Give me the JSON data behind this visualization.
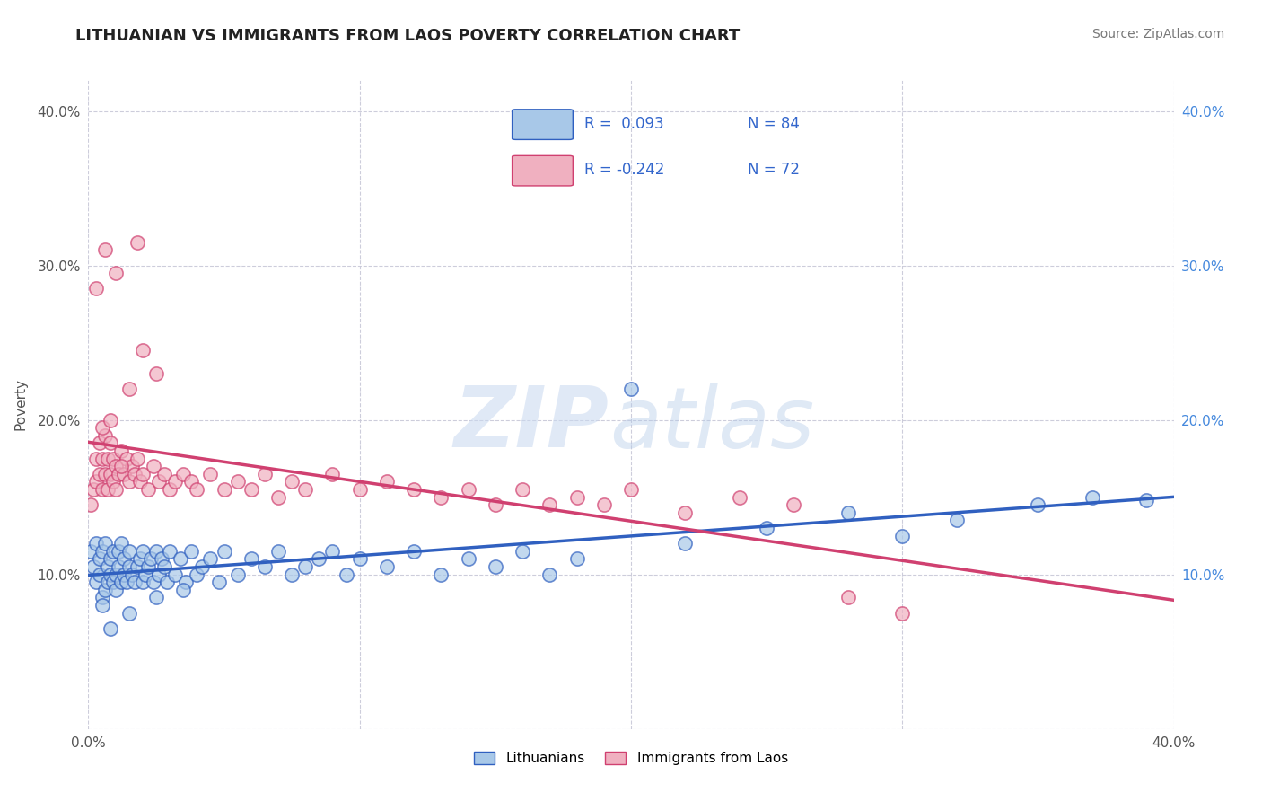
{
  "title": "LITHUANIAN VS IMMIGRANTS FROM LAOS POVERTY CORRELATION CHART",
  "source": "Source: ZipAtlas.com",
  "ylabel": "Poverty",
  "xlim": [
    0.0,
    0.4
  ],
  "ylim": [
    0.0,
    0.42
  ],
  "xticks": [
    0.0,
    0.1,
    0.2,
    0.3,
    0.4
  ],
  "xticklabels": [
    "0.0%",
    "",
    "",
    "",
    "40.0%"
  ],
  "yticks": [
    0.0,
    0.1,
    0.2,
    0.3,
    0.4
  ],
  "yticklabels_left": [
    "",
    "10.0%",
    "20.0%",
    "30.0%",
    "40.0%"
  ],
  "yticklabels_right": [
    "",
    "10.0%",
    "20.0%",
    "30.0%",
    "40.0%"
  ],
  "legend_label1": "Lithuanians",
  "legend_label2": "Immigrants from Laos",
  "color_blue": "#a8c8e8",
  "color_pink": "#f0b0c0",
  "line_blue": "#3060c0",
  "line_pink": "#d04070",
  "watermark_zip": "ZIP",
  "watermark_atlas": "atlas",
  "title_fontsize": 13,
  "background_color": "#ffffff",
  "grid_color": "#c8c8d8",
  "R1": 0.093,
  "N1": 84,
  "R2": -0.242,
  "N2": 72,
  "blue_scatter_x": [
    0.001,
    0.002,
    0.003,
    0.003,
    0.004,
    0.004,
    0.005,
    0.005,
    0.006,
    0.006,
    0.007,
    0.007,
    0.008,
    0.008,
    0.009,
    0.009,
    0.01,
    0.01,
    0.011,
    0.011,
    0.012,
    0.012,
    0.013,
    0.013,
    0.014,
    0.015,
    0.015,
    0.016,
    0.017,
    0.018,
    0.019,
    0.02,
    0.02,
    0.021,
    0.022,
    0.023,
    0.024,
    0.025,
    0.026,
    0.027,
    0.028,
    0.029,
    0.03,
    0.032,
    0.034,
    0.036,
    0.038,
    0.04,
    0.042,
    0.045,
    0.048,
    0.05,
    0.055,
    0.06,
    0.065,
    0.07,
    0.075,
    0.08,
    0.085,
    0.09,
    0.095,
    0.1,
    0.11,
    0.12,
    0.13,
    0.14,
    0.15,
    0.16,
    0.17,
    0.18,
    0.2,
    0.22,
    0.25,
    0.28,
    0.3,
    0.32,
    0.35,
    0.37,
    0.39,
    0.005,
    0.008,
    0.015,
    0.025,
    0.035
  ],
  "blue_scatter_y": [
    0.115,
    0.105,
    0.095,
    0.12,
    0.1,
    0.11,
    0.085,
    0.115,
    0.09,
    0.12,
    0.095,
    0.105,
    0.1,
    0.11,
    0.095,
    0.115,
    0.09,
    0.1,
    0.105,
    0.115,
    0.095,
    0.12,
    0.1,
    0.11,
    0.095,
    0.105,
    0.115,
    0.1,
    0.095,
    0.105,
    0.11,
    0.095,
    0.115,
    0.1,
    0.105,
    0.11,
    0.095,
    0.115,
    0.1,
    0.11,
    0.105,
    0.095,
    0.115,
    0.1,
    0.11,
    0.095,
    0.115,
    0.1,
    0.105,
    0.11,
    0.095,
    0.115,
    0.1,
    0.11,
    0.105,
    0.115,
    0.1,
    0.105,
    0.11,
    0.115,
    0.1,
    0.11,
    0.105,
    0.115,
    0.1,
    0.11,
    0.105,
    0.115,
    0.1,
    0.11,
    0.22,
    0.12,
    0.13,
    0.14,
    0.125,
    0.135,
    0.145,
    0.15,
    0.148,
    0.08,
    0.065,
    0.075,
    0.085,
    0.09
  ],
  "pink_scatter_x": [
    0.001,
    0.002,
    0.003,
    0.003,
    0.004,
    0.004,
    0.005,
    0.005,
    0.006,
    0.006,
    0.007,
    0.007,
    0.008,
    0.008,
    0.009,
    0.009,
    0.01,
    0.01,
    0.011,
    0.012,
    0.013,
    0.014,
    0.015,
    0.016,
    0.017,
    0.018,
    0.019,
    0.02,
    0.022,
    0.024,
    0.026,
    0.028,
    0.03,
    0.032,
    0.035,
    0.038,
    0.04,
    0.045,
    0.05,
    0.055,
    0.06,
    0.065,
    0.07,
    0.075,
    0.08,
    0.09,
    0.1,
    0.11,
    0.12,
    0.13,
    0.14,
    0.15,
    0.16,
    0.17,
    0.18,
    0.19,
    0.2,
    0.22,
    0.24,
    0.26,
    0.28,
    0.3,
    0.005,
    0.008,
    0.012,
    0.015,
    0.02,
    0.025,
    0.003,
    0.006,
    0.01,
    0.018
  ],
  "pink_scatter_y": [
    0.145,
    0.155,
    0.16,
    0.175,
    0.165,
    0.185,
    0.155,
    0.175,
    0.165,
    0.19,
    0.155,
    0.175,
    0.165,
    0.185,
    0.16,
    0.175,
    0.155,
    0.17,
    0.165,
    0.18,
    0.165,
    0.175,
    0.16,
    0.17,
    0.165,
    0.175,
    0.16,
    0.165,
    0.155,
    0.17,
    0.16,
    0.165,
    0.155,
    0.16,
    0.165,
    0.16,
    0.155,
    0.165,
    0.155,
    0.16,
    0.155,
    0.165,
    0.15,
    0.16,
    0.155,
    0.165,
    0.155,
    0.16,
    0.155,
    0.15,
    0.155,
    0.145,
    0.155,
    0.145,
    0.15,
    0.145,
    0.155,
    0.14,
    0.15,
    0.145,
    0.085,
    0.075,
    0.195,
    0.2,
    0.17,
    0.22,
    0.245,
    0.23,
    0.285,
    0.31,
    0.295,
    0.315
  ]
}
